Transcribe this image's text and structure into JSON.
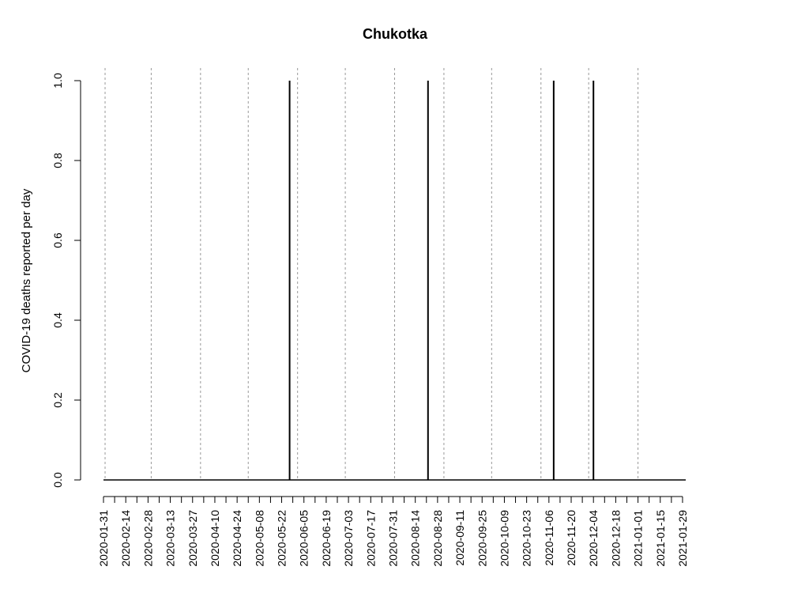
{
  "chart_data": {
    "type": "bar",
    "title": "Chukotka",
    "xlabel": "",
    "ylabel": "COVID-19 deaths reported per day",
    "x_range": [
      "2020-01-31",
      "2021-01-31"
    ],
    "ylim": [
      0,
      1
    ],
    "y_ticks": [
      "0.0",
      "0.2",
      "0.4",
      "0.6",
      "0.8",
      "1.0"
    ],
    "x_tick_labels": [
      "2020-01-31",
      "2020-02-14",
      "2020-02-28",
      "2020-03-13",
      "2020-03-27",
      "2020-04-10",
      "2020-04-24",
      "2020-05-08",
      "2020-05-22",
      "2020-06-05",
      "2020-06-19",
      "2020-07-03",
      "2020-07-17",
      "2020-07-31",
      "2020-08-14",
      "2020-08-28",
      "2020-09-11",
      "2020-09-25",
      "2020-10-09",
      "2020-10-23",
      "2020-11-06",
      "2020-11-20",
      "2020-12-04",
      "2020-12-18",
      "2021-01-01",
      "2021-01-15",
      "2021-01-29"
    ],
    "month_gridlines": [
      "2020-02-01",
      "2020-03-01",
      "2020-04-01",
      "2020-05-01",
      "2020-06-01",
      "2020-07-01",
      "2020-08-01",
      "2020-09-01",
      "2020-10-01",
      "2020-11-01",
      "2020-12-01",
      "2021-01-01"
    ],
    "grid": "vertical dotted lines at month starts",
    "baseline": 0,
    "deaths_dates": [
      "2020-05-27",
      "2020-08-22",
      "2020-11-09",
      "2020-12-04"
    ],
    "deaths_values": [
      1,
      1,
      1,
      1
    ],
    "line_color": "#000000",
    "grid_color": "#999999"
  }
}
